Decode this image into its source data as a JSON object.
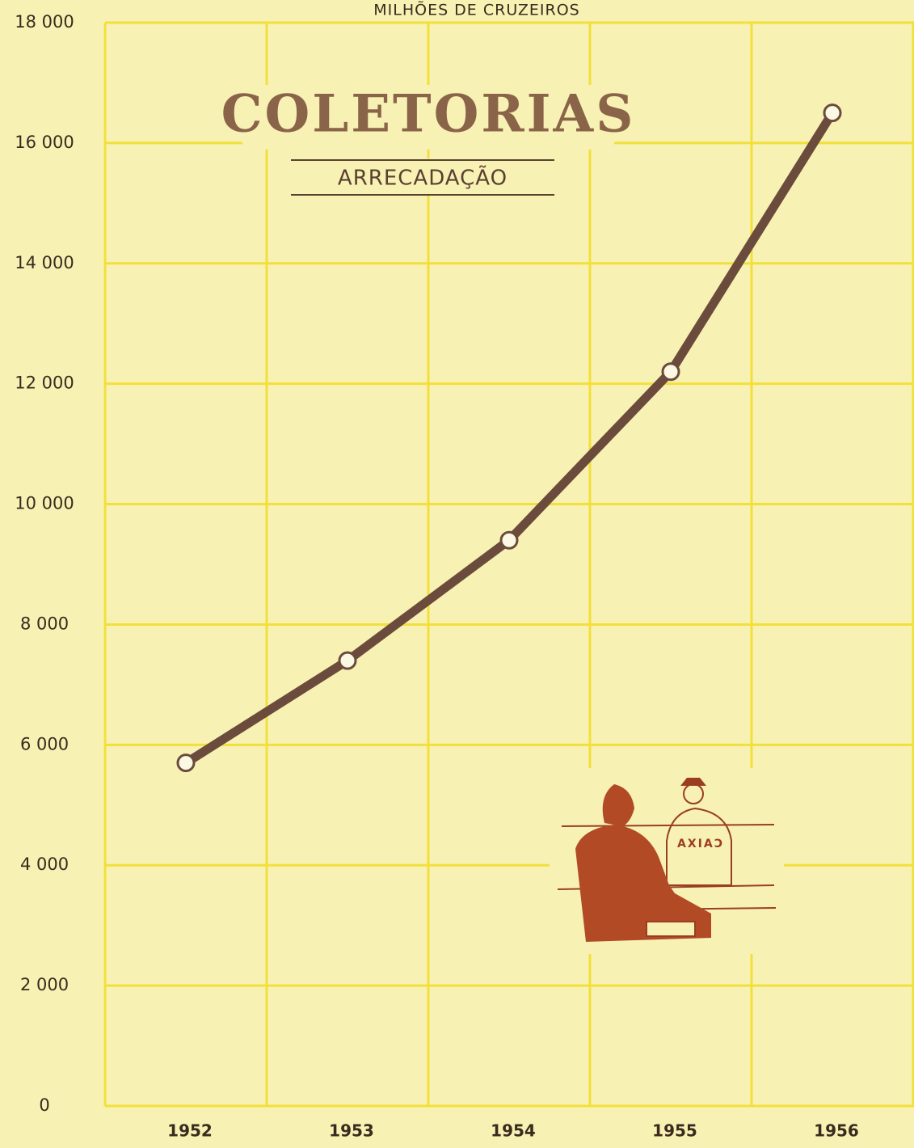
{
  "chart_data": {
    "type": "line",
    "title": "COLETORIAS",
    "subtitle": "ARRECADAÇÃO",
    "y_label": "MILHÕES DE CRUZEIROS",
    "illustration_sign": "CAIXA",
    "categories": [
      "1952",
      "1953",
      "1954",
      "1955",
      "1956"
    ],
    "values": [
      5700,
      7400,
      9400,
      12200,
      16500
    ],
    "color": "#6b4c3c",
    "ylim": [
      0,
      18000
    ],
    "yticks": [
      0,
      {
        "value": 2000,
        "label": "2 000"
      },
      {
        "value": 4000,
        "label": "4 000"
      },
      {
        "value": 6000,
        "label": "6 000"
      },
      {
        "value": 8000,
        "label": "8 000"
      },
      {
        "value": 10000,
        "label": "10 000"
      },
      {
        "value": 12000,
        "label": "12 000"
      },
      {
        "value": 14000,
        "label": "14 000"
      },
      {
        "value": 16000,
        "label": "16 000"
      },
      {
        "value": 18000,
        "label": "18 000"
      }
    ],
    "grid": true
  }
}
